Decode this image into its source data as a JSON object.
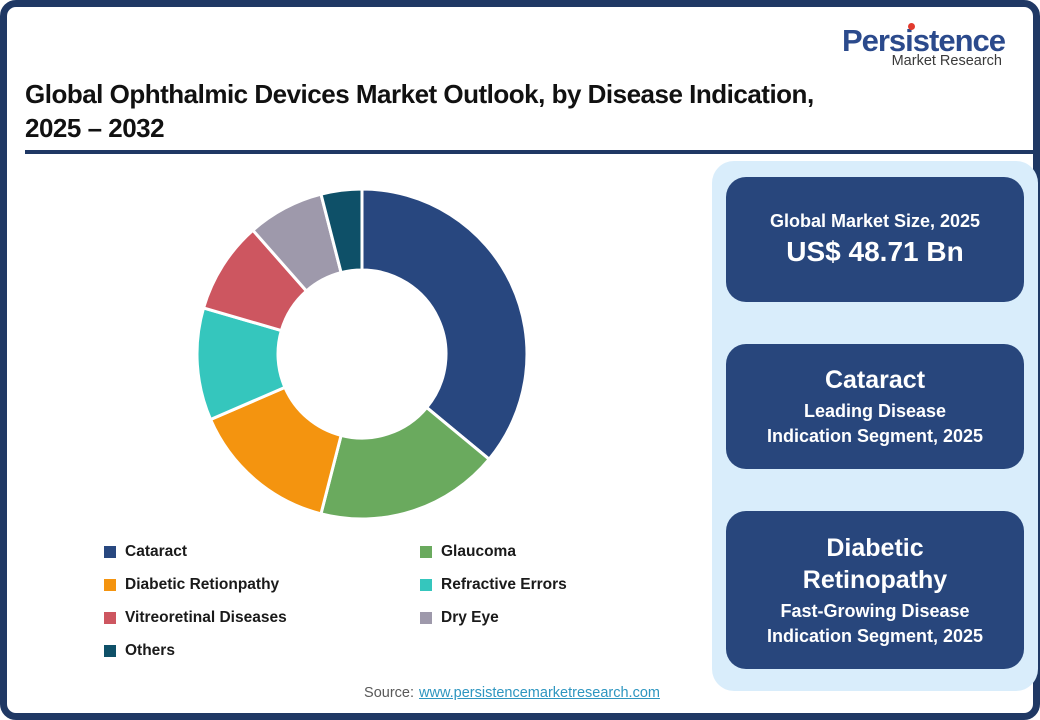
{
  "logo": {
    "brand": "Persistence",
    "tagline": "Market Research",
    "brand_color": "#2b4a8c",
    "dot_color": "#e23a2e"
  },
  "title": {
    "line1": "Global Ophthalmic Devices Market Outlook, by Disease Indication,",
    "line2": "2025 – 2032"
  },
  "chart_data": {
    "type": "pie",
    "subtype": "donut",
    "title": "Global Ophthalmic Devices Market Outlook, by Disease Indication, 2025 – 2032",
    "categories": [
      "Cataract",
      "Glaucoma",
      "Diabetic Retionpathy",
      "Refractive Errors",
      "Vitreoretinal Diseases",
      "Dry Eye",
      "Others"
    ],
    "values": [
      36,
      18,
      14.5,
      11,
      9,
      7.5,
      4
    ],
    "unit": "percent share (estimated from arc angles; no data labels shown)",
    "colors": [
      "#28477f",
      "#6aaa5e",
      "#f4940f",
      "#35c6bd",
      "#cd5660",
      "#9e99ab",
      "#0e5068"
    ],
    "start_angle_deg": 0,
    "direction": "clockwise",
    "inner_radius_ratio": 0.51,
    "slice_gap_stroke": "#ffffff",
    "legend_position": "bottom-left"
  },
  "panel": {
    "background": "#d9edfb",
    "box_color": "#28467c",
    "boxes": [
      {
        "title": "Global Market Size, 2025",
        "value": "US$ 48.71 Bn"
      },
      {
        "title": "Cataract",
        "subtitle": "Leading Disease\nIndication Segment, 2025"
      },
      {
        "title": "Diabetic\nRetinopathy",
        "subtitle": "Fast-Growing Disease\nIndication Segment, 2025"
      }
    ]
  },
  "source": {
    "label": "Source:",
    "url": "www.persistencemarketresearch.com"
  },
  "colors": {
    "frame_border": "#1f3864",
    "title_underline": "#1f3864",
    "title_text": "#111111",
    "link": "#2e96c0"
  }
}
